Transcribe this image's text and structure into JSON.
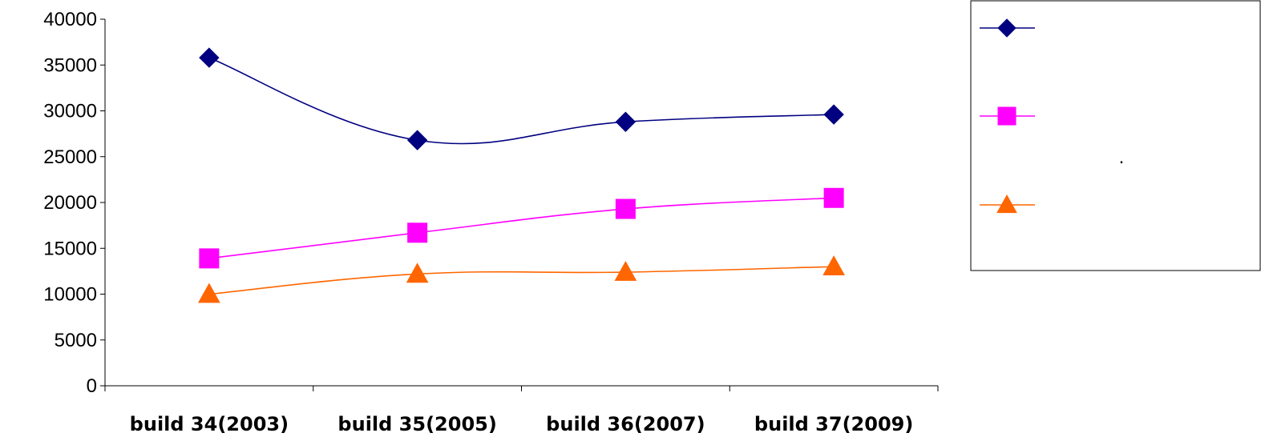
{
  "chart_data": {
    "type": "line",
    "categories": [
      "build 34(2003)",
      "build 35(2005)",
      "build 36(2007)",
      "build 37(2009)"
    ],
    "series": [
      {
        "values": [
          35800,
          26800,
          28800,
          29600
        ],
        "color": "#000080",
        "marker": "diamond"
      },
      {
        "values": [
          13900,
          16700,
          19300,
          20500
        ],
        "color": "#FF00FF",
        "marker": "square"
      },
      {
        "values": [
          10000,
          12200,
          12400,
          13000
        ],
        "color": "#FF6600",
        "marker": "triangle"
      }
    ],
    "yticks": [
      "0",
      "5000",
      "10000",
      "15000",
      "20000",
      "25000",
      "30000",
      "35000",
      "40000"
    ],
    "ylim": [
      0,
      40000
    ],
    "smoothed": true,
    "grid": false,
    "legend": {
      "position": "right",
      "marker_only": true,
      "note": "."
    }
  }
}
